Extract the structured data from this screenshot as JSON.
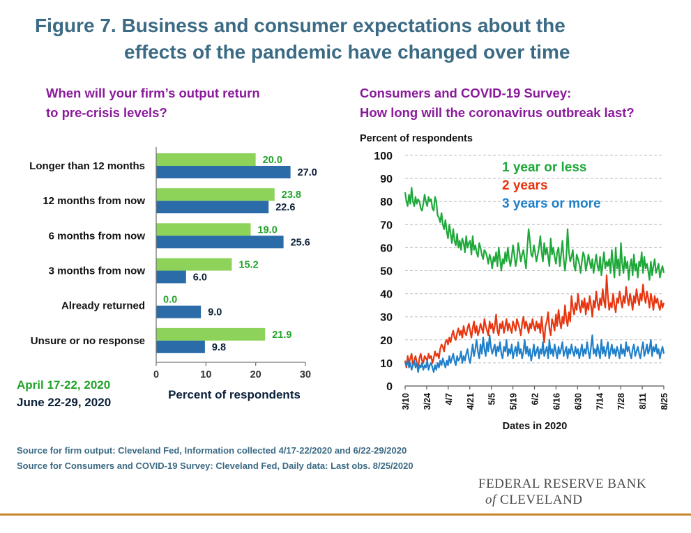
{
  "figure": {
    "title_line1": "Figure 7. Business and consumer expectations about the",
    "title_line2": "effects of the pandemic have changed over time"
  },
  "left_panel": {
    "subtitle_line1": "When will your firm’s output return",
    "subtitle_line2": "to pre-crisis levels?"
  },
  "right_panel": {
    "subtitle_line1": "Consumers and COVID-19 Survey:",
    "subtitle_line2": "How long will the coronavirus outbreak last?"
  },
  "legend_dates": {
    "period1": "April 17-22, 2020",
    "period2": "June 22-29, 2020"
  },
  "sources": {
    "line1": "Source for firm output: Cleveland Fed, Information collected 4/17-22/2020 and 6/22-29/2020",
    "line2": "Source for Consumers and COVID-19 Survey: Cleveland Fed, Daily data: Last obs. 8/25/2020"
  },
  "logo": {
    "line1": "FEDERAL RESERVE BANK",
    "line2_of": "of",
    "line2_rest": "CLEVELAND"
  },
  "colors": {
    "green": "#8dd35a",
    "green_text": "#22a32a",
    "blue": "#2b6ca8",
    "red": "#e8350f",
    "line_blue": "#1f7fc9",
    "line_green": "#1fa83a",
    "title": "#3b6a84",
    "subtitle": "#8a1a9b"
  },
  "chart_data": [
    {
      "type": "bar",
      "orientation": "horizontal",
      "categories": [
        "Longer than 12 months",
        "12 months from now",
        "6 months from now",
        "3 months from now",
        "Already returned",
        "Unsure or no response"
      ],
      "series": [
        {
          "name": "April 17-22, 2020",
          "values": [
            20.0,
            23.8,
            19.0,
            15.2,
            0.0,
            21.9
          ]
        },
        {
          "name": "June 22-29, 2020",
          "values": [
            27.0,
            22.6,
            25.6,
            6.0,
            9.0,
            9.8
          ]
        }
      ],
      "value_labels": [
        [
          "20.0",
          "23.8",
          "19.0",
          "15.2",
          "0.0",
          "21.9"
        ],
        [
          "27.0",
          "22.6",
          "25.6",
          "6.0",
          "9.0",
          "9.8"
        ]
      ],
      "xlim": [
        0,
        30
      ],
      "xticks": [
        "0",
        "10",
        "20",
        "30"
      ],
      "xlabel": "Percent of respondents",
      "grid": false
    },
    {
      "type": "line",
      "ylabel": "Percent of respondents",
      "xlabel": "Dates in 2020",
      "ylim": [
        0,
        100
      ],
      "yticks": [
        "0",
        "10",
        "20",
        "30",
        "40",
        "50",
        "60",
        "70",
        "80",
        "90",
        "100"
      ],
      "x_range": [
        "3/10",
        "8/25"
      ],
      "x_ticks": [
        "3/10",
        "3/24",
        "4/7",
        "4/21",
        "5/5",
        "5/19",
        "6/2",
        "6/16",
        "6/30",
        "7/14",
        "7/28",
        "8/11",
        "8/25"
      ],
      "grid": true,
      "legend_placement": "top-center",
      "series": [
        {
          "name": "1 year or less",
          "values": [
            84,
            80,
            78,
            83,
            79,
            86,
            80,
            78,
            82,
            79,
            81,
            80,
            77,
            76,
            79,
            83,
            80,
            78,
            82,
            80,
            81,
            77,
            76,
            82,
            80,
            74,
            73,
            71,
            75,
            70,
            68,
            72,
            67,
            64,
            70,
            66,
            62,
            68,
            63,
            61,
            66,
            60,
            63,
            59,
            64,
            62,
            58,
            65,
            60,
            62,
            63,
            57,
            65,
            59,
            61,
            58,
            56,
            62,
            60,
            57,
            55,
            59,
            58,
            56,
            53,
            57,
            55,
            51,
            56,
            54,
            58,
            52,
            60,
            55,
            50,
            55,
            53,
            58,
            54,
            60,
            55,
            52,
            56,
            61,
            57,
            52,
            55,
            62,
            58,
            54,
            57,
            59,
            55,
            51,
            60,
            68,
            63,
            57,
            56,
            61,
            58,
            54,
            57,
            60,
            65,
            58,
            54,
            62,
            57,
            60,
            56,
            52,
            64,
            57,
            60,
            56,
            53,
            58,
            60,
            52,
            57,
            63,
            55,
            50,
            56,
            68,
            58,
            54,
            56,
            59,
            52,
            50,
            57,
            55,
            53,
            49,
            54,
            58,
            56,
            50,
            53,
            57,
            54,
            51,
            55,
            49,
            53,
            57,
            52,
            50,
            56,
            48,
            53,
            58,
            51,
            54,
            52,
            55,
            49,
            59,
            53,
            47,
            60,
            51,
            55,
            48,
            62,
            53,
            49,
            56,
            51,
            54,
            46,
            52,
            55,
            48,
            57,
            50,
            53,
            47,
            54,
            52,
            58,
            49,
            56,
            51,
            53,
            50,
            46,
            54,
            48,
            52,
            55,
            49,
            51,
            53,
            47,
            50,
            52,
            49
          ]
        },
        {
          "name": "2 years",
          "values": [
            11,
            8,
            13,
            10,
            12,
            14,
            9,
            11,
            13,
            10,
            8,
            12,
            14,
            11,
            10,
            13,
            12,
            11,
            14,
            12,
            13,
            10,
            12,
            15,
            13,
            14,
            12,
            16,
            18,
            17,
            15,
            19,
            20,
            18,
            21,
            19,
            22,
            24,
            21,
            20,
            23,
            25,
            22,
            24,
            21,
            26,
            23,
            22,
            25,
            27,
            24,
            21,
            25,
            28,
            23,
            26,
            22,
            24,
            27,
            25,
            23,
            29,
            26,
            24,
            22,
            28,
            25,
            27,
            23,
            26,
            31,
            24,
            22,
            27,
            25,
            28,
            23,
            26,
            29,
            24,
            27,
            25,
            23,
            28,
            26,
            24,
            29,
            27,
            25,
            22,
            27,
            30,
            25,
            28,
            26,
            23,
            27,
            25,
            29,
            26,
            24,
            28,
            25,
            27,
            23,
            30,
            24,
            19,
            26,
            28,
            32,
            25,
            22,
            29,
            27,
            24,
            31,
            26,
            33,
            28,
            25,
            30,
            27,
            35,
            29,
            26,
            32,
            28,
            39,
            34,
            31,
            36,
            33,
            40,
            35,
            32,
            37,
            34,
            38,
            31,
            36,
            33,
            39,
            35,
            30,
            37,
            34,
            41,
            36,
            33,
            38,
            35,
            42,
            37,
            34,
            48,
            39,
            33,
            36,
            34,
            40,
            35,
            32,
            38,
            36,
            41,
            37,
            34,
            39,
            36,
            43,
            38,
            35,
            40,
            37,
            33,
            39,
            36,
            42,
            38,
            35,
            40,
            37,
            44,
            39,
            36,
            41,
            38,
            34,
            40,
            37,
            33,
            39,
            36,
            38,
            35,
            33,
            37,
            34,
            36
          ]
        },
        {
          "name": "3 years or more",
          "values": [
            10,
            9,
            11,
            8,
            10,
            7,
            9,
            11,
            8,
            10,
            6,
            9,
            8,
            10,
            7,
            9,
            8,
            11,
            7,
            9,
            10,
            8,
            6,
            9,
            7,
            10,
            8,
            11,
            9,
            12,
            10,
            8,
            11,
            9,
            13,
            10,
            12,
            14,
            11,
            9,
            13,
            11,
            12,
            15,
            10,
            13,
            11,
            14,
            16,
            12,
            10,
            14,
            18,
            13,
            16,
            20,
            15,
            12,
            18,
            14,
            21,
            16,
            13,
            19,
            15,
            22,
            17,
            14,
            16,
            18,
            13,
            17,
            15,
            19,
            14,
            12,
            17,
            15,
            20,
            13,
            16,
            14,
            18,
            12,
            15,
            17,
            13,
            19,
            14,
            16,
            12,
            15,
            20,
            14,
            17,
            13,
            16,
            11,
            14,
            18,
            13,
            15,
            17,
            12,
            16,
            14,
            19,
            13,
            15,
            17,
            12,
            20,
            14,
            16,
            13,
            18,
            15,
            12,
            17,
            14,
            16,
            19,
            13,
            15,
            17,
            12,
            16,
            14,
            18,
            15,
            13,
            17,
            14,
            16,
            12,
            15,
            18,
            13,
            16,
            14,
            19,
            15,
            12,
            17,
            22,
            14,
            16,
            13,
            18,
            15,
            12,
            20,
            14,
            17,
            13,
            16,
            19,
            12,
            15,
            18,
            14,
            16,
            13,
            17,
            15,
            12,
            18,
            14,
            16,
            13,
            19,
            15,
            17,
            14,
            12,
            16,
            18,
            13,
            15,
            17,
            14,
            12,
            16,
            19,
            13,
            15,
            18,
            14,
            16,
            20,
            13,
            17,
            15,
            18,
            14,
            16,
            12,
            15,
            17,
            14
          ]
        }
      ]
    }
  ]
}
